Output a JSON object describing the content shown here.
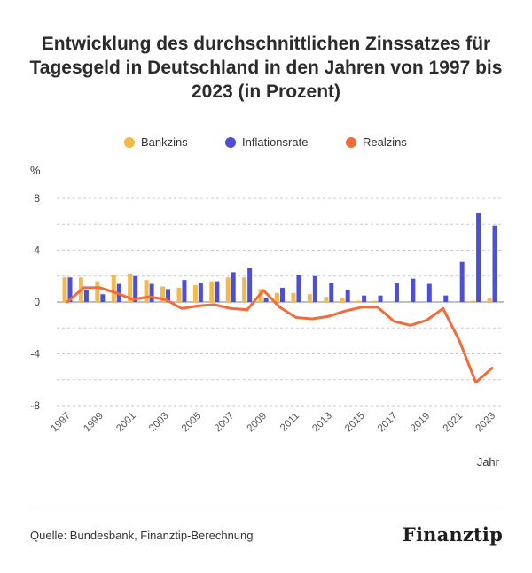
{
  "chart_data": {
    "type": "bar+line",
    "title": "Entwicklung des durchschnittlichen Zinssatzes für Tagesgeld in Deutschland in den Jahren von 1997 bis 2023 (in Prozent)",
    "ylabel": "%",
    "xlabel": "Jahr",
    "ylim": [
      -8,
      8
    ],
    "yticks": [
      8,
      4,
      0,
      -4,
      -8
    ],
    "years": [
      1997,
      1998,
      1999,
      2000,
      2001,
      2002,
      2003,
      2004,
      2005,
      2006,
      2007,
      2008,
      2009,
      2010,
      2011,
      2012,
      2013,
      2014,
      2015,
      2016,
      2017,
      2018,
      2019,
      2020,
      2021,
      2022,
      2023
    ],
    "xtick_labels": [
      "1997",
      "1999",
      "2001",
      "2003",
      "2005",
      "2007",
      "2009",
      "2011",
      "2013",
      "2015",
      "2017",
      "2019",
      "2021",
      "2023"
    ],
    "series": [
      {
        "name": "Bankzins",
        "type": "bar",
        "color": "#f5b94a",
        "values": [
          1.9,
          1.9,
          1.6,
          2.1,
          2.2,
          1.7,
          1.2,
          1.1,
          1.3,
          1.6,
          1.9,
          1.9,
          1.0,
          0.7,
          0.7,
          0.6,
          0.4,
          0.3,
          0.1,
          0.1,
          0.0,
          0.0,
          0.0,
          0.0,
          0.0,
          0.1,
          0.3
        ]
      },
      {
        "name": "Inflationsrate",
        "type": "bar",
        "color": "#4c4fd8",
        "values": [
          1.9,
          0.9,
          0.6,
          1.4,
          2.0,
          1.4,
          1.0,
          1.7,
          1.5,
          1.6,
          2.3,
          2.6,
          0.3,
          1.1,
          2.1,
          2.0,
          1.5,
          0.9,
          0.5,
          0.5,
          1.5,
          1.8,
          1.4,
          0.5,
          3.1,
          6.9,
          5.9
        ]
      },
      {
        "name": "Realzins",
        "type": "line",
        "color": "#f26b3a",
        "values": [
          0.0,
          1.1,
          1.1,
          0.7,
          0.2,
          0.4,
          0.2,
          -0.5,
          -0.3,
          -0.2,
          -0.5,
          -0.6,
          0.9,
          -0.4,
          -1.2,
          -1.3,
          -1.1,
          -0.7,
          -0.4,
          -0.4,
          -1.5,
          -1.8,
          -1.4,
          -0.5,
          -3.0,
          -6.2,
          -5.1
        ]
      }
    ]
  },
  "legend": {
    "bankzins": "Bankzins",
    "inflation": "Inflationsrate",
    "realzins": "Realzins"
  },
  "colors": {
    "bankzins": "#f5b94a",
    "inflation": "#4c4fd8",
    "realzins": "#f26b3a",
    "grid": "#c8c8c8",
    "zero": "#9a9a9a"
  },
  "source": "Quelle: Bundesbank, Finanztip-Berechnung",
  "brand": "Finanztip"
}
